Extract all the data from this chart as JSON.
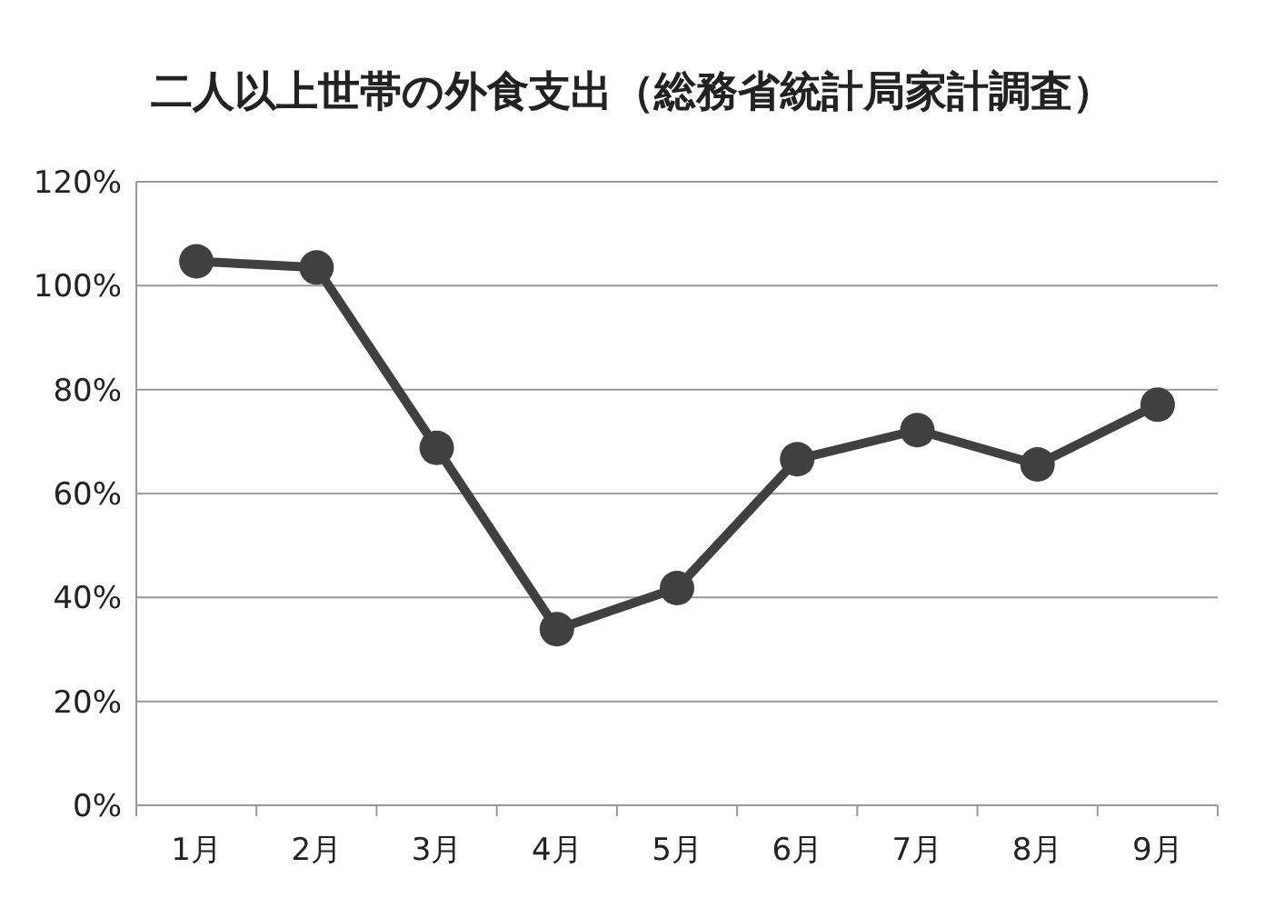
{
  "chart_data": {
    "type": "line",
    "title": "二人以上世帯の外食支出（総務省統計局家計調査）",
    "categories": [
      "1月",
      "2月",
      "3月",
      "4月",
      "5月",
      "6月",
      "7月",
      "8月",
      "9月"
    ],
    "series": [
      {
        "color": "#404040",
        "values": [
          104.7,
          103.5,
          68.8,
          33.9,
          41.8,
          66.6,
          72.2,
          65.6,
          77.1
        ]
      }
    ],
    "ylim": [
      0,
      120
    ],
    "yticks": [
      {
        "value": 0,
        "label": "0%"
      },
      {
        "value": 20,
        "label": "20%"
      },
      {
        "value": 40,
        "label": "40%"
      },
      {
        "value": 60,
        "label": "60%"
      },
      {
        "value": 80,
        "label": "80%"
      },
      {
        "value": 100,
        "label": "100%"
      },
      {
        "value": 120,
        "label": "120%"
      }
    ],
    "grid": "y",
    "marker": "circle",
    "line_style": "solid"
  }
}
